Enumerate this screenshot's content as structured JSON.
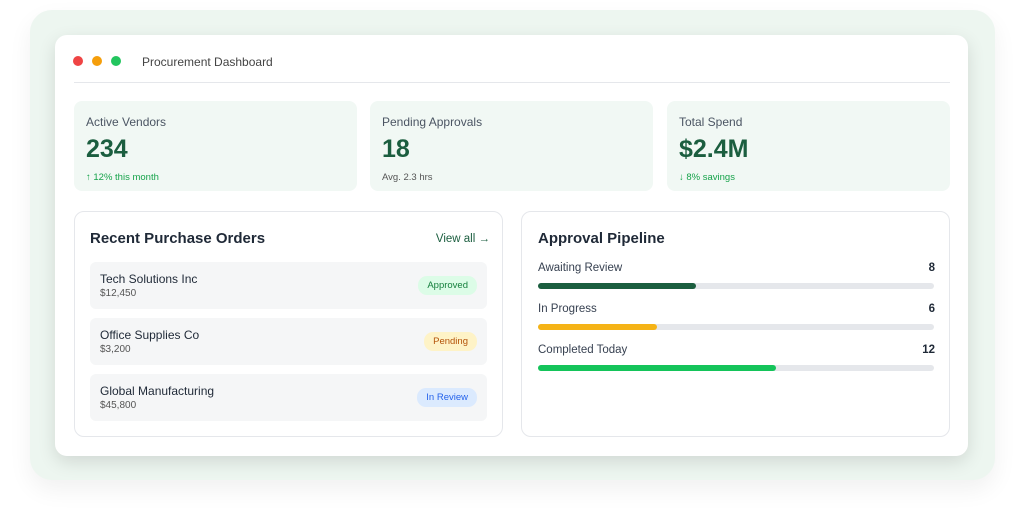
{
  "window": {
    "title": "Procurement Dashboard"
  },
  "stats": [
    {
      "label": "Active Vendors",
      "value": "234",
      "note": "↑ 12% this month"
    },
    {
      "label": "Pending Approvals",
      "value": "18",
      "note": "Avg. 2.3 hrs"
    },
    {
      "label": "Total Spend",
      "value": "$2.4M",
      "note": "↓ 8% savings"
    }
  ],
  "orders": {
    "title": "Recent Purchase Orders",
    "link": "View all →",
    "items": [
      {
        "name": "Tech Solutions Inc",
        "amount": "$12,450",
        "status": "Approved"
      },
      {
        "name": "Office Supplies Co",
        "amount": "$3,200",
        "status": "Pending"
      },
      {
        "name": "Global Manufacturing",
        "amount": "$45,800",
        "status": "In Review"
      }
    ]
  },
  "pipeline": {
    "title": "Approval Pipeline",
    "xlim": [
      0,
      20
    ],
    "items": [
      {
        "label": "Awaiting Review",
        "value": 8,
        "color": "#1b5e3f"
      },
      {
        "label": "In Progress",
        "value": 6,
        "color": "#f5b316"
      },
      {
        "label": "Completed Today",
        "value": 12,
        "color": "#14c45a"
      }
    ]
  }
}
